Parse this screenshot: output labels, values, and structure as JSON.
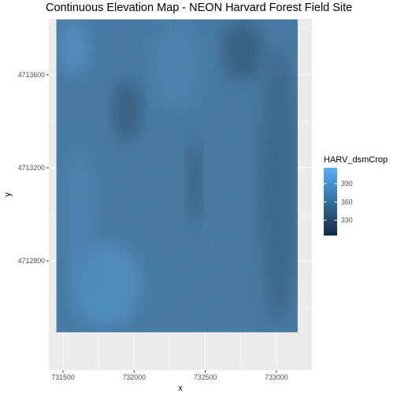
{
  "chart_data": {
    "type": "heatmap",
    "title": "Continuous Elevation Map - NEON Harvard Forest Field Site",
    "xlabel": "x",
    "ylabel": "y",
    "xlim": [
      731400,
      733250
    ],
    "ylim": [
      4712330,
      4713840
    ],
    "raster_extent": {
      "x": [
        731453,
        733150
      ],
      "y": [
        4712493,
        4713838
      ]
    },
    "x_ticks": [
      731500,
      732000,
      732500,
      733000
    ],
    "y_ticks": [
      4712800,
      4713200,
      4713600
    ],
    "grid": true,
    "panel_background": "#ebebeb",
    "legend": {
      "title": "HARV_dsmCrop",
      "position": "right",
      "breaks": [
        330,
        360,
        390
      ],
      "range": [
        305,
        416
      ],
      "low_color": "#132B43",
      "high_color": "#56B1F7"
    },
    "regions": [
      {
        "x": [
          731453,
          733150
        ],
        "y": [
          4712493,
          4713838
        ],
        "value": 362
      },
      {
        "x": [
          731550,
          732050
        ],
        "y": [
          4712510,
          4712880
        ],
        "value": 385
      },
      {
        "x": [
          731460,
          731680
        ],
        "y": [
          4713600,
          4713835
        ],
        "value": 388
      },
      {
        "x": [
          731850,
          732050
        ],
        "y": [
          4713310,
          4713580
        ],
        "value": 330
      },
      {
        "x": [
          732370,
          732470
        ],
        "y": [
          4712950,
          4713330
        ],
        "value": 330
      },
      {
        "x": [
          732620,
          732900
        ],
        "y": [
          4713570,
          4713835
        ],
        "value": 330
      },
      {
        "x": [
          732880,
          733150
        ],
        "y": [
          4712520,
          4713720
        ],
        "value": 340
      },
      {
        "x": [
          731500,
          731720
        ],
        "y": [
          4712700,
          4713300
        ],
        "value": 374
      },
      {
        "x": [
          732100,
          732500
        ],
        "y": [
          4713450,
          4713830
        ],
        "value": 372
      }
    ]
  }
}
